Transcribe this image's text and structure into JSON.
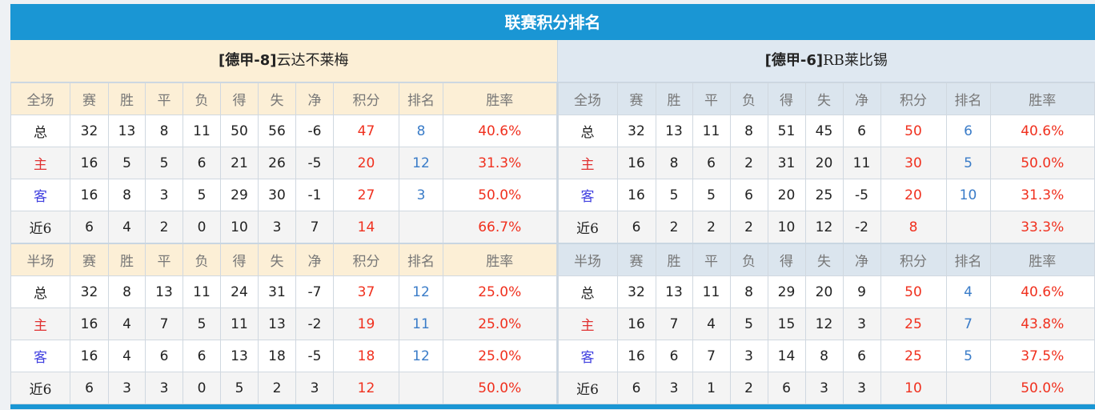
{
  "title": "联赛积分排名",
  "colors": {
    "title_bar": "#1a96d4",
    "points": "#f0301e",
    "rank": "#3a7cc8",
    "home_label": "#e03030",
    "away_label": "#4040e0"
  },
  "teams": [
    {
      "prefix": "[德甲-8]",
      "name": "云达不莱梅",
      "full": {
        "header": [
          "全场",
          "赛",
          "胜",
          "平",
          "负",
          "得",
          "失",
          "净",
          "积分",
          "排名",
          "胜率"
        ],
        "rows": [
          [
            "总",
            "32",
            "13",
            "8",
            "11",
            "50",
            "56",
            "-6",
            "47",
            "8",
            "40.6%"
          ],
          [
            "主",
            "16",
            "5",
            "5",
            "6",
            "21",
            "26",
            "-5",
            "20",
            "12",
            "31.3%"
          ],
          [
            "客",
            "16",
            "8",
            "3",
            "5",
            "29",
            "30",
            "-1",
            "27",
            "3",
            "50.0%"
          ],
          [
            "近6",
            "6",
            "4",
            "2",
            "0",
            "10",
            "3",
            "7",
            "14",
            "",
            "66.7%"
          ]
        ]
      },
      "half": {
        "header": [
          "半场",
          "赛",
          "胜",
          "平",
          "负",
          "得",
          "失",
          "净",
          "积分",
          "排名",
          "胜率"
        ],
        "rows": [
          [
            "总",
            "32",
            "8",
            "13",
            "11",
            "24",
            "31",
            "-7",
            "37",
            "12",
            "25.0%"
          ],
          [
            "主",
            "16",
            "4",
            "7",
            "5",
            "11",
            "13",
            "-2",
            "19",
            "11",
            "25.0%"
          ],
          [
            "客",
            "16",
            "4",
            "6",
            "6",
            "13",
            "18",
            "-5",
            "18",
            "12",
            "25.0%"
          ],
          [
            "近6",
            "6",
            "3",
            "3",
            "0",
            "5",
            "2",
            "3",
            "12",
            "",
            "50.0%"
          ]
        ]
      }
    },
    {
      "prefix": "[德甲-6]",
      "name": "RB莱比锡",
      "full": {
        "header": [
          "全场",
          "赛",
          "胜",
          "平",
          "负",
          "得",
          "失",
          "净",
          "积分",
          "排名",
          "胜率"
        ],
        "rows": [
          [
            "总",
            "32",
            "13",
            "11",
            "8",
            "51",
            "45",
            "6",
            "50",
            "6",
            "40.6%"
          ],
          [
            "主",
            "16",
            "8",
            "6",
            "2",
            "31",
            "20",
            "11",
            "30",
            "5",
            "50.0%"
          ],
          [
            "客",
            "16",
            "5",
            "5",
            "6",
            "20",
            "25",
            "-5",
            "20",
            "10",
            "31.3%"
          ],
          [
            "近6",
            "6",
            "2",
            "2",
            "2",
            "10",
            "12",
            "-2",
            "8",
            "",
            "33.3%"
          ]
        ]
      },
      "half": {
        "header": [
          "半场",
          "赛",
          "胜",
          "平",
          "负",
          "得",
          "失",
          "净",
          "积分",
          "排名",
          "胜率"
        ],
        "rows": [
          [
            "总",
            "32",
            "13",
            "11",
            "8",
            "29",
            "20",
            "9",
            "50",
            "4",
            "40.6%"
          ],
          [
            "主",
            "16",
            "7",
            "4",
            "5",
            "15",
            "12",
            "3",
            "25",
            "7",
            "43.8%"
          ],
          [
            "客",
            "16",
            "6",
            "7",
            "3",
            "14",
            "8",
            "6",
            "25",
            "5",
            "37.5%"
          ],
          [
            "近6",
            "6",
            "3",
            "1",
            "2",
            "6",
            "3",
            "3",
            "10",
            "",
            "50.0%"
          ]
        ]
      }
    }
  ]
}
